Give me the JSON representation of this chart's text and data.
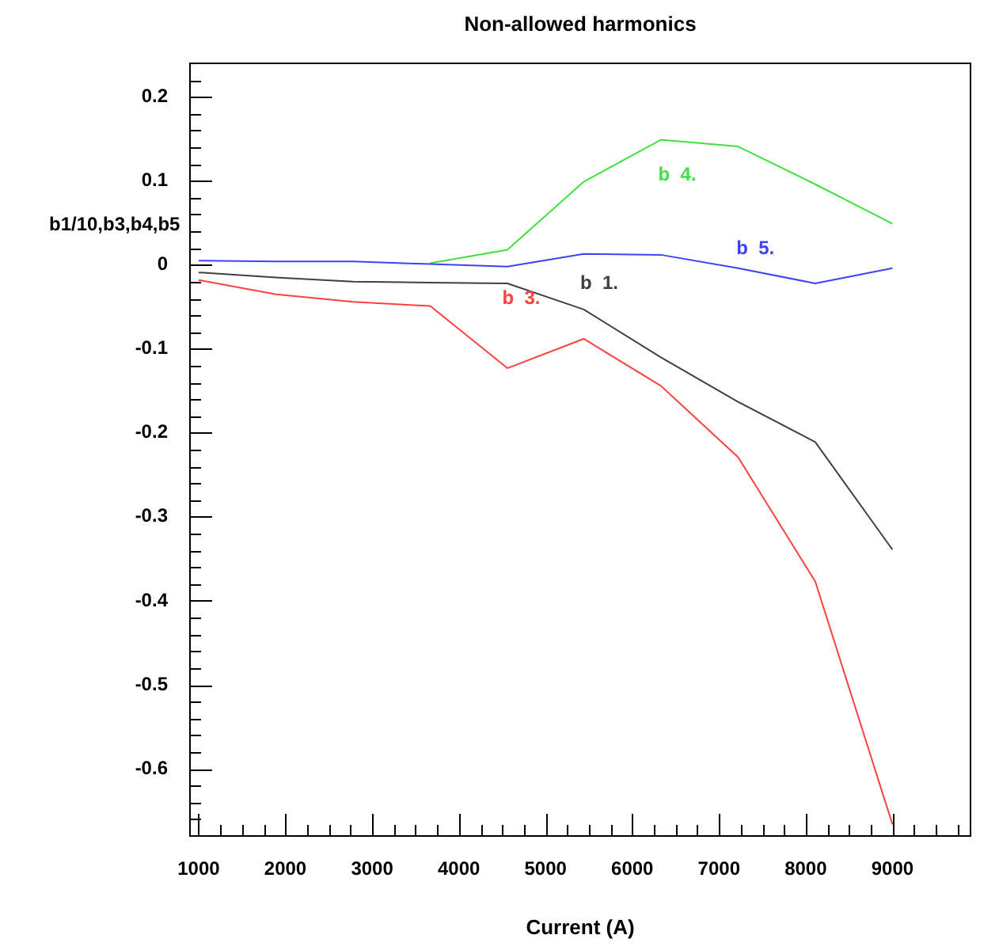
{
  "chart_data": {
    "type": "line",
    "title": "Non-allowed harmonics",
    "xlabel": "Current (A)",
    "ylabel": "b1/10,b3,b4,b5",
    "x": [
      1000,
      1890,
      2780,
      3670,
      4560,
      5440,
      6330,
      7220,
      8110,
      9000
    ],
    "series": [
      {
        "name": "b  1.",
        "color": "#404040",
        "values": [
          -0.009,
          -0.015,
          -0.02,
          -0.021,
          -0.022,
          -0.053,
          -0.11,
          -0.163,
          -0.211,
          -0.339
        ]
      },
      {
        "name": "b  3.",
        "color": "#ff4040",
        "values": [
          -0.018,
          -0.035,
          -0.044,
          -0.049,
          -0.123,
          -0.088,
          -0.144,
          -0.229,
          -0.377,
          -0.666
        ]
      },
      {
        "name": "b  4.",
        "color": "#40e040",
        "values": [
          null,
          null,
          null,
          0.002,
          0.018,
          0.099,
          0.149,
          0.141,
          0.096,
          0.049
        ]
      },
      {
        "name": "b  5.",
        "color": "#4040ff",
        "values": [
          0.005,
          0.004,
          0.004,
          0.001,
          -0.002,
          0.013,
          0.012,
          -0.004,
          -0.022,
          -0.004
        ]
      }
    ],
    "xlim": [
      900,
      9900
    ],
    "ylim": [
      -0.68,
      0.24
    ],
    "xticks": [
      1000,
      {
        "value": 1250,
        "label": null
      },
      {
        "value": 1500,
        "label": null
      },
      {
        "value": 1750,
        "label": null
      },
      2000,
      {
        "value": 2250,
        "label": null
      },
      {
        "value": 2500,
        "label": null
      },
      {
        "value": 2750,
        "label": null
      },
      3000,
      {
        "value": 3250,
        "label": null
      },
      {
        "value": 3500,
        "label": null
      },
      {
        "value": 3750,
        "label": null
      },
      4000,
      {
        "value": 4250,
        "label": null
      },
      {
        "value": 4500,
        "label": null
      },
      {
        "value": 4750,
        "label": null
      },
      5000,
      {
        "value": 5250,
        "label": null
      },
      {
        "value": 5500,
        "label": null
      },
      {
        "value": 5750,
        "label": null
      },
      6000,
      {
        "value": 6250,
        "label": null
      },
      {
        "value": 6500,
        "label": null
      },
      {
        "value": 6750,
        "label": null
      },
      7000,
      {
        "value": 7250,
        "label": null
      },
      {
        "value": 7500,
        "label": null
      },
      {
        "value": 7750,
        "label": null
      },
      8000,
      {
        "value": 8250,
        "label": null
      },
      {
        "value": 8500,
        "label": null
      },
      {
        "value": 8750,
        "label": null
      },
      9000,
      {
        "value": 9250,
        "label": null
      },
      {
        "value": 9500,
        "label": null
      },
      {
        "value": 9750,
        "label": null
      }
    ],
    "yticks": [
      {
        "value": -0.66,
        "label": null
      },
      {
        "value": -0.64,
        "label": null
      },
      {
        "value": -0.62,
        "label": null
      },
      -0.6,
      {
        "value": -0.58,
        "label": null
      },
      {
        "value": -0.56,
        "label": null
      },
      {
        "value": -0.54,
        "label": null
      },
      {
        "value": -0.52,
        "label": null
      },
      -0.5,
      {
        "value": -0.48,
        "label": null
      },
      {
        "value": -0.46,
        "label": null
      },
      {
        "value": -0.44,
        "label": null
      },
      {
        "value": -0.42,
        "label": null
      },
      -0.4,
      {
        "value": -0.38,
        "label": null
      },
      {
        "value": -0.36,
        "label": null
      },
      {
        "value": -0.34,
        "label": null
      },
      {
        "value": -0.32,
        "label": null
      },
      -0.3,
      {
        "value": -0.28,
        "label": null
      },
      {
        "value": -0.26,
        "label": null
      },
      {
        "value": -0.24,
        "label": null
      },
      {
        "value": -0.22,
        "label": null
      },
      -0.2,
      {
        "value": -0.18,
        "label": null
      },
      {
        "value": -0.16,
        "label": null
      },
      {
        "value": -0.14,
        "label": null
      },
      {
        "value": -0.12,
        "label": null
      },
      -0.1,
      {
        "value": -0.08,
        "label": null
      },
      {
        "value": -0.06,
        "label": null
      },
      {
        "value": -0.04,
        "label": null
      },
      {
        "value": -0.02,
        "label": null
      },
      0,
      {
        "value": 0.02,
        "label": null
      },
      {
        "value": 0.04,
        "label": null
      },
      {
        "value": 0.06,
        "label": null
      },
      {
        "value": 0.08,
        "label": null
      },
      0.1,
      {
        "value": 0.12,
        "label": null
      },
      {
        "value": 0.14,
        "label": null
      },
      {
        "value": 0.16,
        "label": null
      },
      {
        "value": 0.18,
        "label": null
      },
      0.2,
      {
        "value": 0.22,
        "label": null
      }
    ],
    "grid": false,
    "legend": false,
    "marker": "none",
    "line_style": "solid"
  }
}
